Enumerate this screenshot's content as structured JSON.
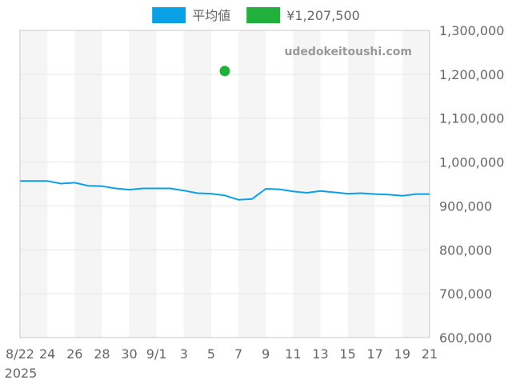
{
  "chart_data": {
    "type": "line",
    "watermark": "udedokeitoushi.com",
    "x_labels": [
      "8/22",
      "24",
      "26",
      "28",
      "30",
      "9/1",
      "3",
      "5",
      "7",
      "9",
      "11",
      "13",
      "15",
      "17",
      "19",
      "21"
    ],
    "year_label": "2025",
    "y_tick_labels": [
      "1,300,000",
      "1,200,000",
      "1,100,000",
      "1,000,000",
      "900,000",
      "800,000",
      "700,000",
      "600,000"
    ],
    "ylim": [
      600000,
      1300000
    ],
    "grid": true,
    "legend_position": "top",
    "series": [
      {
        "name": "平均値",
        "color": "#0aa0e6",
        "kind": "line",
        "values": [
          957000,
          957000,
          957000,
          951000,
          953000,
          946000,
          945000,
          940000,
          937000,
          940000,
          940000,
          940000,
          935000,
          929000,
          928000,
          924000,
          914000,
          916000,
          939000,
          938000,
          933000,
          930000,
          934000,
          931000,
          928000,
          929000,
          927000,
          926000,
          923000,
          927000,
          927000
        ]
      },
      {
        "name": "¥1,207,500",
        "color": "#21b03b",
        "kind": "point",
        "points": [
          {
            "day_index": 15,
            "value": 1207500
          }
        ]
      }
    ]
  }
}
